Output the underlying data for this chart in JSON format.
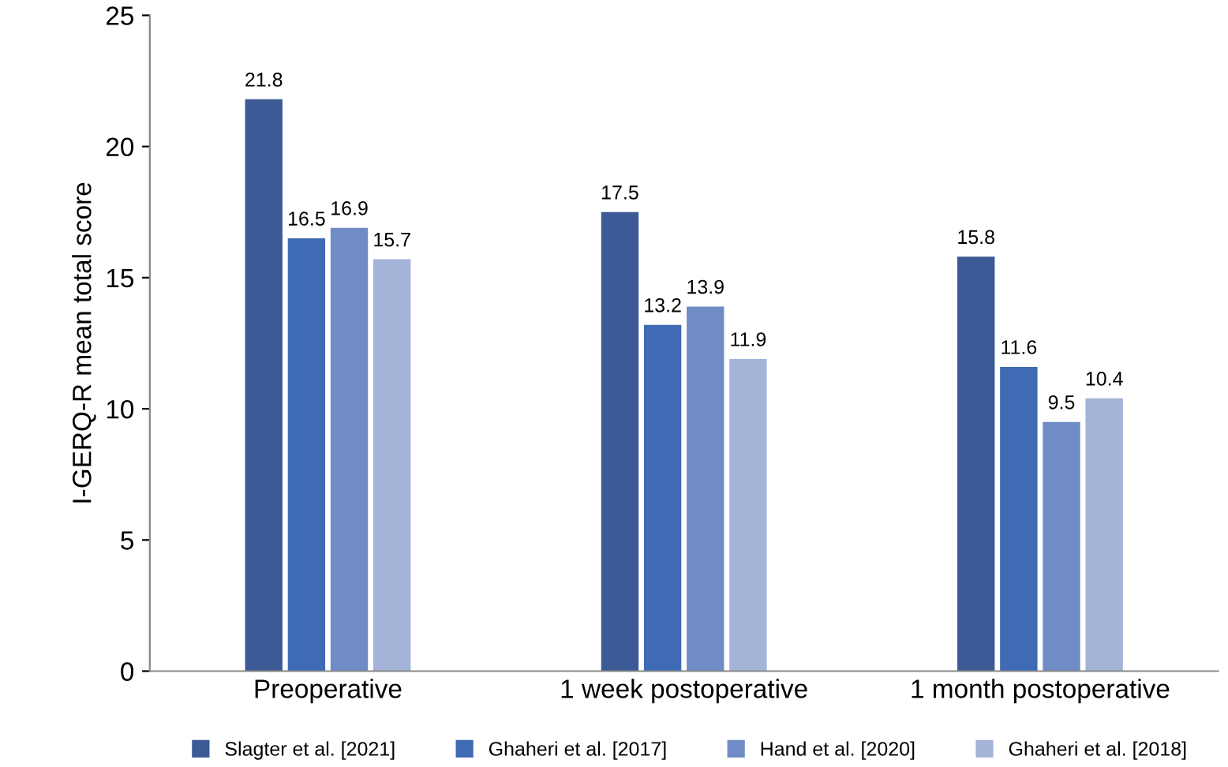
{
  "chart_data": {
    "type": "bar",
    "ylabel": "I-GERQ-R mean total score",
    "categories": [
      "Preoperative",
      "1 week postoperative",
      "1 month postoperative"
    ],
    "series": [
      {
        "name": "Slagter et al. [2021]",
        "color": "#3c5a95",
        "values": [
          21.8,
          17.5,
          15.8
        ]
      },
      {
        "name": "Ghaheri et al. [2017]",
        "color": "#3e6bb4",
        "values": [
          16.5,
          13.2,
          11.6
        ]
      },
      {
        "name": "Hand et al. [2020]",
        "color": "#708cc6",
        "values": [
          16.9,
          13.9,
          9.5
        ]
      },
      {
        "name": "Ghaheri et al. [2018]",
        "color": "#a4b3d8",
        "values": [
          15.7,
          11.9,
          10.4
        ]
      }
    ],
    "ylim": [
      0,
      25
    ],
    "yticks": [
      0,
      5,
      10,
      15,
      20,
      25
    ],
    "grid": false,
    "legend": "bottom",
    "data_labels": true
  }
}
